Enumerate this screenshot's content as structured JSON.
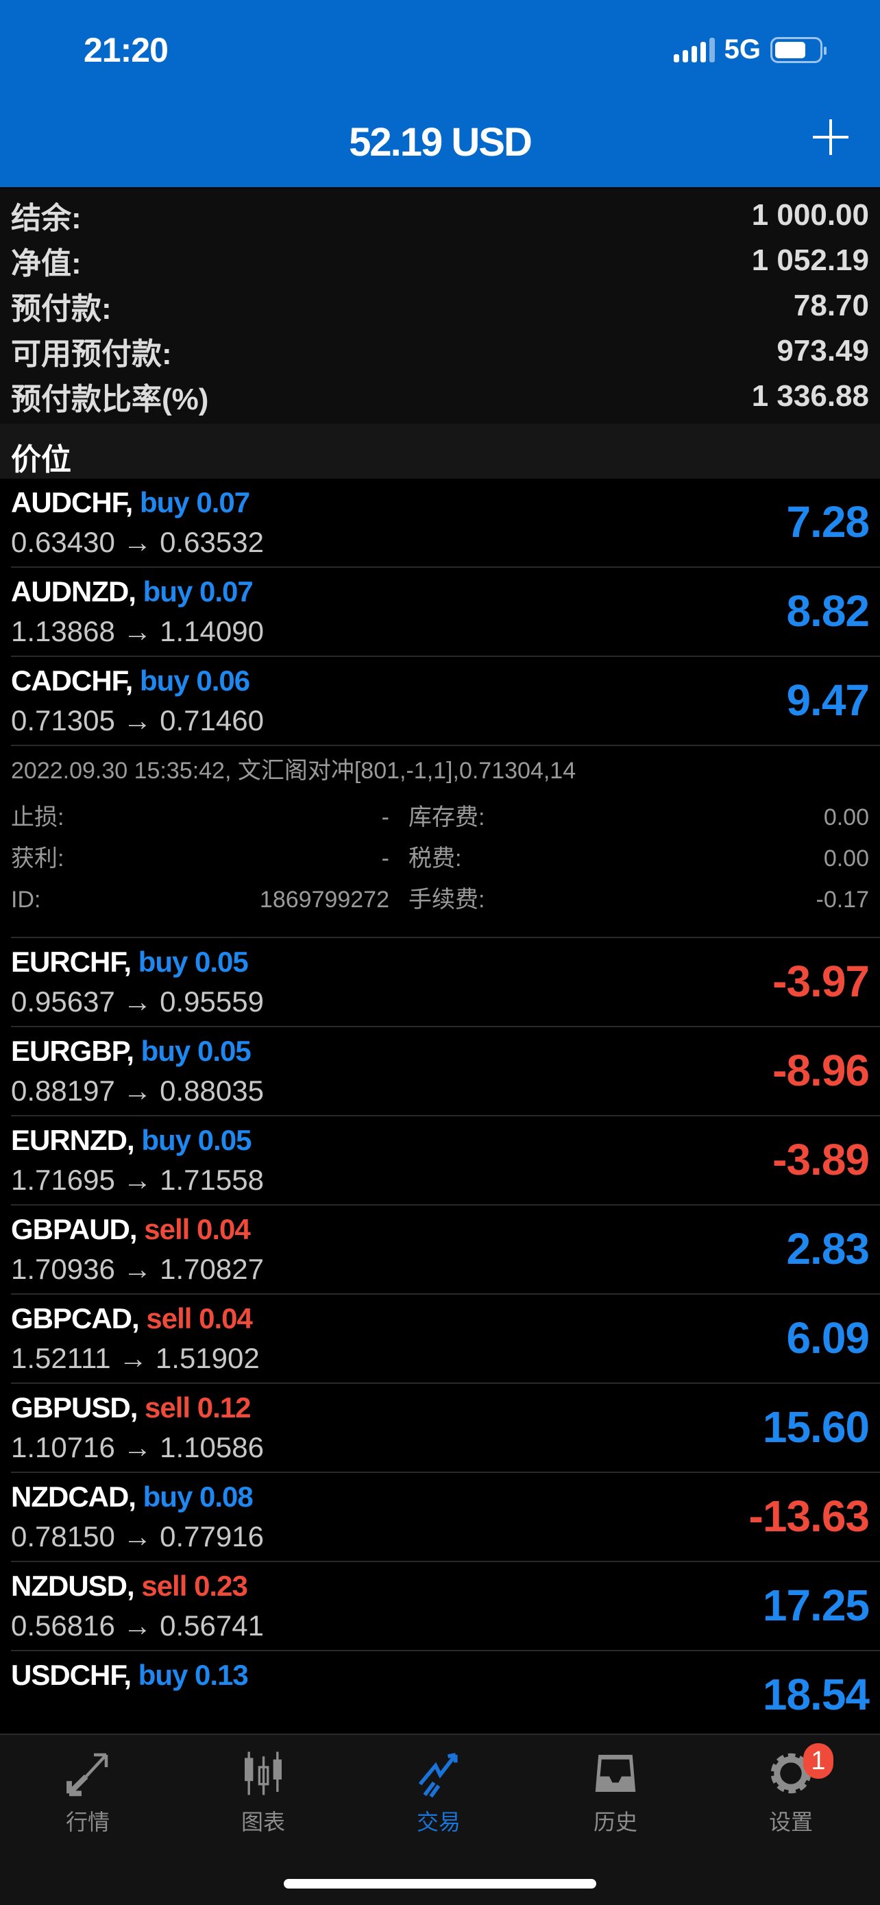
{
  "status_bar": {
    "time": "21:20",
    "network": "5G"
  },
  "header": {
    "title": "52.19 USD",
    "add_icon": "plus-icon"
  },
  "summary": [
    {
      "label": "结余:",
      "value": "1 000.00"
    },
    {
      "label": "净值:",
      "value": "1 052.19"
    },
    {
      "label": "预付款:",
      "value": "78.70"
    },
    {
      "label": "可用预付款:",
      "value": "973.49"
    },
    {
      "label": "预付款比率(%)",
      "value": "1 336.88"
    }
  ],
  "section_title": "价位",
  "positions": [
    {
      "symbol": "AUDCHF,",
      "side": "buy",
      "volume": "buy 0.07",
      "prices": "0.63430 → 0.63532",
      "profit": "7.28"
    },
    {
      "symbol": "AUDNZD,",
      "side": "buy",
      "volume": "buy 0.07",
      "prices": "1.13868 → 1.14090",
      "profit": "8.82"
    },
    {
      "symbol": "CADCHF,",
      "side": "buy",
      "volume": "buy 0.06",
      "prices": "0.71305 → 0.71460",
      "profit": "9.47"
    },
    {
      "symbol": "EURCHF,",
      "side": "buy",
      "volume": "buy 0.05",
      "prices": "0.95637 → 0.95559",
      "profit": "-3.97"
    },
    {
      "symbol": "EURGBP,",
      "side": "buy",
      "volume": "buy 0.05",
      "prices": "0.88197 → 0.88035",
      "profit": "-8.96"
    },
    {
      "symbol": "EURNZD,",
      "side": "buy",
      "volume": "buy 0.05",
      "prices": "1.71695 → 1.71558",
      "profit": "-3.89"
    },
    {
      "symbol": "GBPAUD,",
      "side": "sell",
      "volume": "sell 0.04",
      "prices": "1.70936 → 1.70827",
      "profit": "2.83"
    },
    {
      "symbol": "GBPCAD,",
      "side": "sell",
      "volume": "sell 0.04",
      "prices": "1.52111 → 1.51902",
      "profit": "6.09"
    },
    {
      "symbol": "GBPUSD,",
      "side": "sell",
      "volume": "sell 0.12",
      "prices": "1.10716 → 1.10586",
      "profit": "15.60"
    },
    {
      "symbol": "NZDCAD,",
      "side": "buy",
      "volume": "buy 0.08",
      "prices": "0.78150 → 0.77916",
      "profit": "-13.63"
    },
    {
      "symbol": "NZDUSD,",
      "side": "sell",
      "volume": "sell 0.23",
      "prices": "0.56816 → 0.56741",
      "profit": "17.25"
    },
    {
      "symbol": "USDCHF,",
      "side": "buy",
      "volume": "buy 0.13",
      "prices": "",
      "profit": "18.54"
    }
  ],
  "details": {
    "comment": "2022.09.30 15:35:42, 文汇阁对冲[801,-1,1],0.71304,14",
    "sl_label": "止损:",
    "sl": "-",
    "swap_label": "库存费:",
    "swap": "0.00",
    "tp_label": "获利:",
    "tp": "-",
    "tax_label": "税费:",
    "tax": "0.00",
    "id_label": "ID:",
    "id": "1869799272",
    "fee_label": "手续费:",
    "fee": "-0.17"
  },
  "tabs": [
    {
      "label": "行情",
      "icon": "quotes-arrows-icon"
    },
    {
      "label": "图表",
      "icon": "candlestick-chart-icon"
    },
    {
      "label": "交易",
      "icon": "trade-trend-icon",
      "active": true
    },
    {
      "label": "历史",
      "icon": "history-inbox-icon"
    },
    {
      "label": "设置",
      "icon": "gear-icon",
      "badge": "1"
    }
  ],
  "colors": {
    "header": "#0569CB",
    "buy": "#1E88F0",
    "sell": "#F04A3A",
    "profit_positive": "#1E88F0",
    "profit_negative": "#F04A3A"
  }
}
